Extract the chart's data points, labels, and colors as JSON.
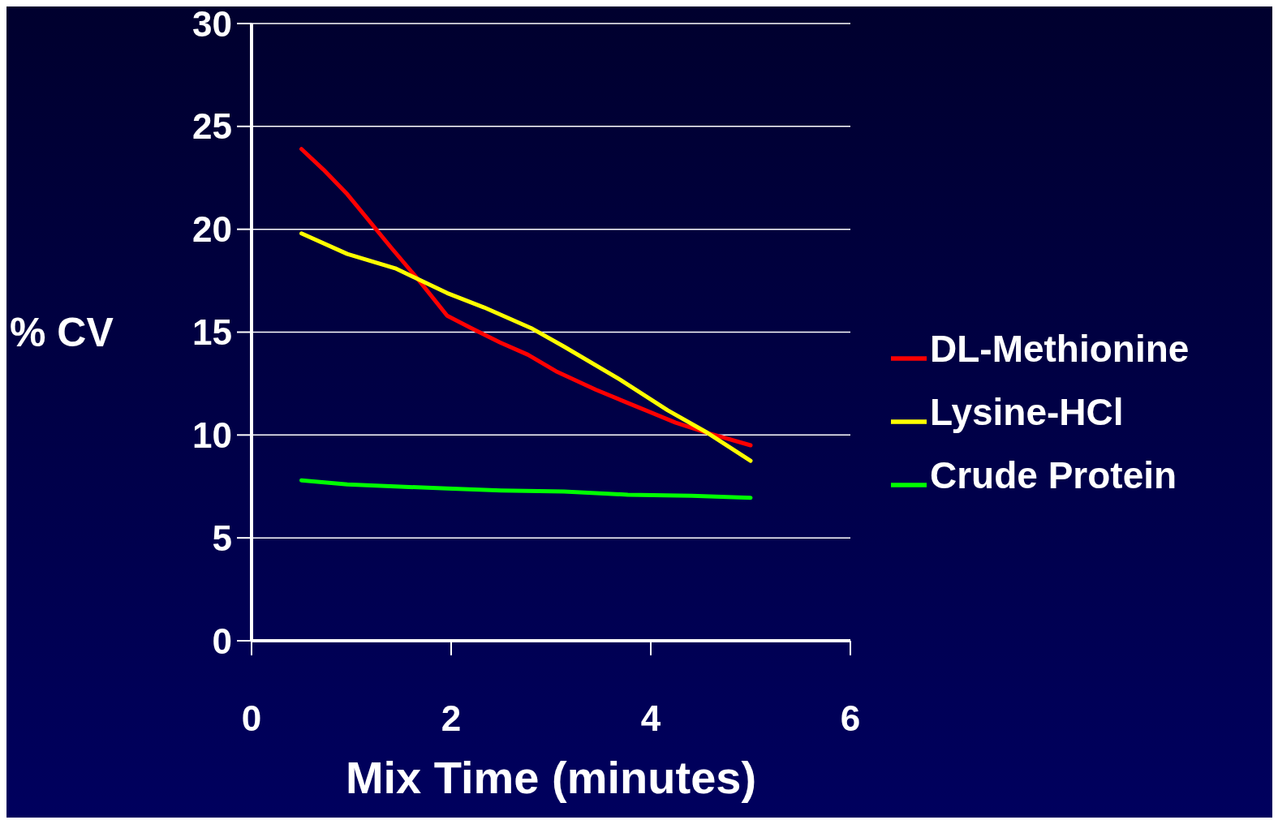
{
  "chart_data": {
    "type": "line",
    "xlabel": "Mix Time (minutes)",
    "ylabel": "% CV",
    "xlim": [
      0,
      6
    ],
    "xticks": [
      0,
      2,
      4,
      6
    ],
    "ylim": [
      0,
      30
    ],
    "yticks": [
      0,
      5,
      10,
      15,
      20,
      25,
      30
    ],
    "grid": "y",
    "legend": "right",
    "marker": "none",
    "line_style": "solid",
    "series": [
      {
        "name": "DL-Methionine",
        "color": "#ff0000",
        "x": [
          0.5,
          0.72,
          0.96,
          1.4,
          1.68,
          1.96,
          2.2,
          2.49,
          2.77,
          3.05,
          3.45,
          3.85,
          4.25,
          4.57,
          5.0
        ],
        "values": [
          23.9,
          22.9,
          21.7,
          19.1,
          17.5,
          15.8,
          15.2,
          14.5,
          13.9,
          13.1,
          12.2,
          11.4,
          10.6,
          10.1,
          9.5
        ]
      },
      {
        "name": "Lysine-HCl",
        "color": "#ffff00",
        "x": [
          0.5,
          0.96,
          1.44,
          1.96,
          2.33,
          2.8,
          3.13,
          3.69,
          4.17,
          4.57,
          5.0
        ],
        "values": [
          19.8,
          18.8,
          18.1,
          16.9,
          16.2,
          15.2,
          14.3,
          12.7,
          11.2,
          10.1,
          8.75
        ]
      },
      {
        "name": "Crude Protein",
        "color": "#00ff00",
        "x": [
          0.5,
          0.96,
          1.44,
          1.96,
          2.5,
          3.13,
          3.77,
          4.41,
          5.0
        ],
        "values": [
          7.8,
          7.6,
          7.5,
          7.4,
          7.3,
          7.25,
          7.1,
          7.05,
          6.95
        ]
      }
    ]
  }
}
